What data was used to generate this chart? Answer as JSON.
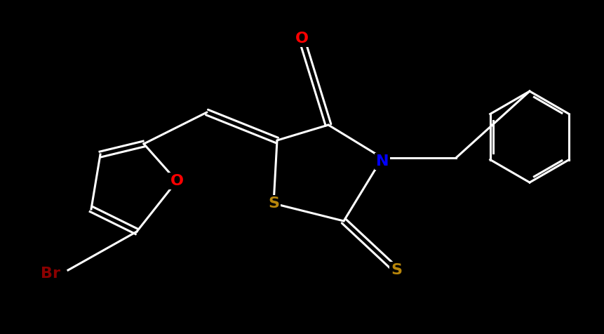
{
  "background_color": "#000000",
  "bond_color": "#ffffff",
  "atom_colors": {
    "O": "#ff0000",
    "N": "#0000ff",
    "S": "#b8860b",
    "Br": "#8b0000",
    "C": "#ffffff"
  },
  "fig_width": 8.62,
  "fig_height": 4.76,
  "dpi": 100
}
